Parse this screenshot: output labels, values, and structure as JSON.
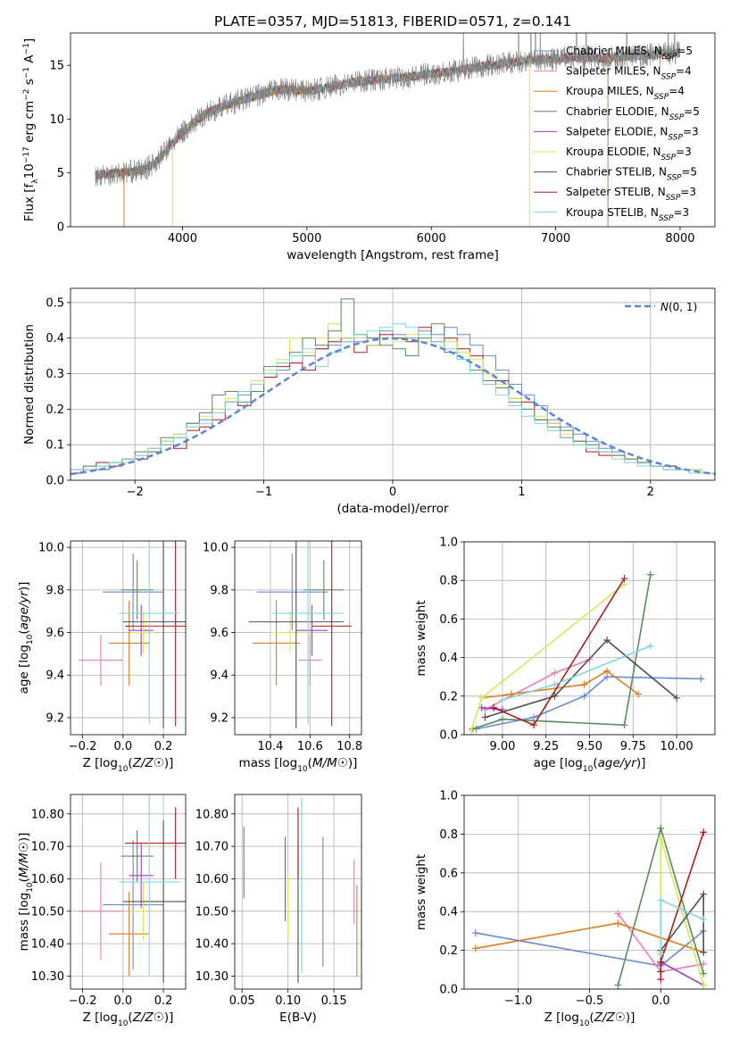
{
  "figure": {
    "title": "PLATE=0357, MJD=51813, FIBERID=0571, z=0.141"
  },
  "chart_data": [
    {
      "id": "spectrum",
      "type": "line",
      "xlabel": "wavelength [Angstrom, rest frame]",
      "ylabel": "Flux [f_λ10^-17 erg cm^-2 s^-1 A^-1]",
      "xlim": [
        3100,
        8280
      ],
      "ylim": [
        0,
        18
      ],
      "xticks": [
        4000,
        5000,
        6000,
        7000,
        8000
      ],
      "yticks": [
        0,
        5,
        10,
        15
      ],
      "grid": false,
      "legend_position": "top-right",
      "observed": {
        "color": "#808080",
        "x": [
          3300,
          3500,
          3700,
          3800,
          3900,
          4000,
          4200,
          4400,
          4600,
          4800,
          5000,
          5200,
          5400,
          5600,
          5800,
          6000,
          6200,
          6400,
          6600,
          6800,
          7000,
          7200,
          7400,
          7600,
          7800,
          8000
        ],
        "y": [
          4.8,
          5.0,
          5.3,
          6.2,
          7.5,
          8.8,
          10.6,
          11.5,
          12.2,
          12.8,
          12.6,
          13.0,
          13.5,
          13.7,
          13.9,
          14.2,
          14.5,
          14.9,
          15.2,
          15.5,
          15.6,
          15.8,
          15.6,
          15.9,
          16.0,
          16.2
        ]
      },
      "series": [
        {
          "name": "Chabrier MILES",
          "nssp": "5",
          "color": "#6a8ad6"
        },
        {
          "name": "Salpeter MILES",
          "nssp": "4",
          "color": "#e57fb4"
        },
        {
          "name": "Kroupa MILES",
          "nssp": "4",
          "color": "#e07b20"
        },
        {
          "name": "Chabrier ELODIE",
          "nssp": "5",
          "color": "#5a8a5f"
        },
        {
          "name": "Salpeter ELODIE",
          "nssp": "3",
          "color": "#a03cc8"
        },
        {
          "name": "Kroupa ELODIE",
          "nssp": "3",
          "color": "#d4e85c"
        },
        {
          "name": "Chabrier STELIB",
          "nssp": "5",
          "color": "#4f4f4f"
        },
        {
          "name": "Salpeter STELIB",
          "nssp": "3",
          "color": "#b01c1c"
        },
        {
          "name": "Kroupa STELIB",
          "nssp": "3",
          "color": "#7fd6df"
        }
      ]
    },
    {
      "id": "residual_hist",
      "type": "histogram",
      "xlabel": "(data-model)/error",
      "ylabel": "Normed distribution",
      "xlim": [
        -2.5,
        2.5
      ],
      "ylim": [
        0,
        0.54
      ],
      "xticks": [
        -2,
        -1,
        0,
        1,
        2
      ],
      "yticks": [
        0.0,
        0.1,
        0.2,
        0.3,
        0.4,
        0.5
      ],
      "grid": true,
      "legend_position": "top-right",
      "reference": {
        "label": "N(0,1)",
        "color": "#5b86d6",
        "style": "dashed"
      },
      "bin_edges_start": -2.5,
      "bin_width": 0.1,
      "series": [
        {
          "color": "#6a8ad6",
          "values": [
            0.03,
            0.04,
            0.04,
            0.05,
            0.06,
            0.07,
            0.09,
            0.11,
            0.13,
            0.16,
            0.17,
            0.2,
            0.22,
            0.24,
            0.27,
            0.29,
            0.31,
            0.33,
            0.35,
            0.37,
            0.38,
            0.39,
            0.39,
            0.4,
            0.42,
            0.41,
            0.4,
            0.42,
            0.41,
            0.43,
            0.41,
            0.38,
            0.35,
            0.31,
            0.27,
            0.24,
            0.21,
            0.17,
            0.15,
            0.13,
            0.11,
            0.09,
            0.08,
            0.06,
            0.05,
            0.04,
            0.04,
            0.03,
            0.03,
            0.02
          ]
        },
        {
          "color": "#b01c1c",
          "values": [
            0.02,
            0.03,
            0.05,
            0.04,
            0.06,
            0.06,
            0.08,
            0.1,
            0.09,
            0.14,
            0.15,
            0.17,
            0.22,
            0.21,
            0.25,
            0.29,
            0.32,
            0.33,
            0.31,
            0.37,
            0.39,
            0.4,
            0.36,
            0.38,
            0.41,
            0.4,
            0.39,
            0.43,
            0.39,
            0.4,
            0.37,
            0.35,
            0.3,
            0.28,
            0.23,
            0.22,
            0.17,
            0.16,
            0.12,
            0.11,
            0.08,
            0.07,
            0.07,
            0.06,
            0.05,
            0.04,
            0.04,
            0.03,
            0.03,
            0.02
          ]
        },
        {
          "color": "#d4e85c",
          "values": [
            0.03,
            0.04,
            0.04,
            0.05,
            0.05,
            0.07,
            0.09,
            0.11,
            0.13,
            0.15,
            0.18,
            0.2,
            0.23,
            0.25,
            0.28,
            0.31,
            0.34,
            0.4,
            0.36,
            0.4,
            0.44,
            0.4,
            0.41,
            0.38,
            0.4,
            0.39,
            0.41,
            0.39,
            0.38,
            0.39,
            0.36,
            0.34,
            0.3,
            0.27,
            0.23,
            0.2,
            0.18,
            0.16,
            0.13,
            0.11,
            0.09,
            0.08,
            0.07,
            0.06,
            0.05,
            0.04,
            0.03,
            0.03,
            0.03,
            0.02
          ]
        },
        {
          "color": "#5a8a5f",
          "values": [
            0.03,
            0.04,
            0.03,
            0.05,
            0.06,
            0.08,
            0.08,
            0.12,
            0.12,
            0.16,
            0.19,
            0.24,
            0.25,
            0.22,
            0.25,
            0.32,
            0.33,
            0.36,
            0.4,
            0.38,
            0.42,
            0.51,
            0.41,
            0.4,
            0.38,
            0.37,
            0.35,
            0.4,
            0.44,
            0.36,
            0.34,
            0.31,
            0.28,
            0.26,
            0.22,
            0.2,
            0.17,
            0.15,
            0.14,
            0.11,
            0.1,
            0.08,
            0.07,
            0.06,
            0.05,
            0.04,
            0.03,
            0.03,
            0.02,
            0.02
          ]
        },
        {
          "color": "#7fd6df",
          "values": [
            0.03,
            0.03,
            0.04,
            0.05,
            0.06,
            0.07,
            0.09,
            0.1,
            0.12,
            0.15,
            0.16,
            0.19,
            0.22,
            0.25,
            0.27,
            0.3,
            0.33,
            0.35,
            0.37,
            0.32,
            0.36,
            0.39,
            0.41,
            0.42,
            0.43,
            0.44,
            0.43,
            0.41,
            0.39,
            0.37,
            0.34,
            0.3,
            0.27,
            0.24,
            0.21,
            0.18,
            0.16,
            0.14,
            0.12,
            0.1,
            0.09,
            0.08,
            0.06,
            0.05,
            0.04,
            0.04,
            0.03,
            0.03,
            0.02,
            0.02
          ]
        }
      ]
    },
    {
      "id": "age_vs_Z",
      "type": "errorbar",
      "xlabel": "Z [log10(Z/Z☉)]",
      "ylabel": "age  [log10(age/yr)]",
      "xlim": [
        -0.26,
        0.31
      ],
      "ylim": [
        9.12,
        10.03
      ],
      "xticks": [
        -0.2,
        0.0,
        0.2
      ],
      "yticks": [
        9.2,
        9.4,
        9.6,
        9.8,
        10.0
      ],
      "grid": true,
      "points": [
        {
          "color": "#6a8ad6",
          "x": 0.05,
          "xerr": 0.15,
          "y": 9.79,
          "yerr": 0.18
        },
        {
          "color": "#e57fb4",
          "x": -0.11,
          "xerr": 0.11,
          "y": 9.47,
          "yerr": 0.12
        },
        {
          "color": "#e07b20",
          "x": 0.03,
          "xerr": 0.1,
          "y": 9.55,
          "yerr": 0.2
        },
        {
          "color": "#5a8a5f",
          "x": 0.07,
          "xerr": 0.08,
          "y": 9.8,
          "yerr": 0.14
        },
        {
          "color": "#a03cc8",
          "x": 0.09,
          "xerr": 0.06,
          "y": 9.61,
          "yerr": 0.12
        },
        {
          "color": "#d4e85c",
          "x": 0.1,
          "xerr": 0.06,
          "y": 9.6,
          "yerr": 0.1
        },
        {
          "color": "#4f4f4f",
          "x": 0.2,
          "xerr": 0.2,
          "y": 9.65,
          "yerr": 0.5
        },
        {
          "color": "#b01c1c",
          "x": 0.26,
          "xerr": 0.25,
          "y": 9.63,
          "yerr": 0.47
        },
        {
          "color": "#7fd6df",
          "x": 0.13,
          "xerr": 0.15,
          "y": 9.69,
          "yerr": 0.52
        }
      ]
    },
    {
      "id": "age_vs_mass",
      "type": "errorbar",
      "xlabel": "mass [log10(M/M☉)]",
      "ylabel": "",
      "xlim": [
        10.22,
        10.86
      ],
      "ylim": [
        9.12,
        10.03
      ],
      "xticks": [
        10.4,
        10.6,
        10.8
      ],
      "yticks": [
        9.2,
        9.4,
        9.6,
        9.8,
        10.0
      ],
      "grid": true,
      "points": [
        {
          "color": "#6a8ad6",
          "x": 10.51,
          "xerr": 0.18,
          "y": 9.79,
          "yerr": 0.18
        },
        {
          "color": "#e57fb4",
          "x": 10.6,
          "xerr": 0.06,
          "y": 9.47,
          "yerr": 0.12
        },
        {
          "color": "#e07b20",
          "x": 10.43,
          "xerr": 0.12,
          "y": 9.55,
          "yerr": 0.2
        },
        {
          "color": "#5a8a5f",
          "x": 10.67,
          "xerr": 0.1,
          "y": 9.8,
          "yerr": 0.14
        },
        {
          "color": "#a03cc8",
          "x": 10.61,
          "xerr": 0.08,
          "y": 9.61,
          "yerr": 0.12
        },
        {
          "color": "#d4e85c",
          "x": 10.5,
          "xerr": 0.1,
          "y": 9.6,
          "yerr": 0.1
        },
        {
          "color": "#4f4f4f",
          "x": 10.53,
          "xerr": 0.24,
          "y": 9.65,
          "yerr": 0.5
        },
        {
          "color": "#b01c1c",
          "x": 10.71,
          "xerr": 0.1,
          "y": 9.63,
          "yerr": 0.47
        },
        {
          "color": "#7fd6df",
          "x": 10.59,
          "xerr": 0.18,
          "y": 9.69,
          "yerr": 0.52
        }
      ]
    },
    {
      "id": "massweight_vs_age",
      "type": "line",
      "xlabel": "age  [log10(age/yr)]",
      "ylabel": "mass weight",
      "xlim": [
        8.78,
        10.22
      ],
      "ylim": [
        0,
        1
      ],
      "xticks": [
        9.0,
        9.25,
        9.5,
        9.75,
        10.0
      ],
      "yticks": [
        0.0,
        0.2,
        0.4,
        0.6,
        0.8,
        1.0
      ],
      "grid": true,
      "series": [
        {
          "color": "#6a8ad6",
          "x": [
            8.85,
            9.18,
            9.47,
            9.6,
            10.14
          ],
          "y": [
            0.03,
            0.09,
            0.2,
            0.3,
            0.29
          ]
        },
        {
          "color": "#e57fb4",
          "x": [
            8.9,
            9.3,
            9.5
          ],
          "y": [
            0.13,
            0.32,
            0.39
          ]
        },
        {
          "color": "#e07b20",
          "x": [
            8.88,
            9.05,
            9.47,
            9.6,
            9.78
          ],
          "y": [
            0.19,
            0.21,
            0.26,
            0.33,
            0.21
          ]
        },
        {
          "color": "#5a8a5f",
          "x": [
            8.83,
            9.0,
            9.7,
            9.85
          ],
          "y": [
            0.03,
            0.08,
            0.05,
            0.83
          ]
        },
        {
          "color": "#a03cc8",
          "x": [
            8.88,
            9.0
          ],
          "y": [
            0.14,
            0.13
          ]
        },
        {
          "color": "#d4e85c",
          "x": [
            8.82,
            8.88,
            9.7
          ],
          "y": [
            0.02,
            0.19,
            0.78
          ]
        },
        {
          "color": "#4f4f4f",
          "x": [
            8.9,
            9.3,
            9.6,
            10.0
          ],
          "y": [
            0.09,
            0.2,
            0.49,
            0.19
          ]
        },
        {
          "color": "#b01c1c",
          "x": [
            8.95,
            9.18,
            9.7
          ],
          "y": [
            0.14,
            0.05,
            0.81
          ]
        },
        {
          "color": "#7fd6df",
          "x": [
            9.0,
            9.3,
            9.85
          ],
          "y": [
            0.18,
            0.26,
            0.46
          ]
        }
      ]
    },
    {
      "id": "mass_vs_Z",
      "type": "errorbar",
      "xlabel": "Z [log10(Z/Z☉)]",
      "ylabel": "mass [log10(M/M☉)]",
      "xlim": [
        -0.26,
        0.31
      ],
      "ylim": [
        10.26,
        10.86
      ],
      "xticks": [
        -0.2,
        0.0,
        0.2
      ],
      "yticks": [
        10.3,
        10.4,
        10.5,
        10.6,
        10.7,
        10.8
      ],
      "grid": true,
      "points": [
        {
          "color": "#6a8ad6",
          "x": 0.05,
          "xerr": 0.15,
          "y": 10.52,
          "yerr": 0.2
        },
        {
          "color": "#e57fb4",
          "x": -0.11,
          "xerr": 0.11,
          "y": 10.5,
          "yerr": 0.15
        },
        {
          "color": "#e07b20",
          "x": 0.03,
          "xerr": 0.1,
          "y": 10.43,
          "yerr": 0.13
        },
        {
          "color": "#5a8a5f",
          "x": 0.07,
          "xerr": 0.08,
          "y": 10.67,
          "yerr": 0.08
        },
        {
          "color": "#a03cc8",
          "x": 0.09,
          "xerr": 0.06,
          "y": 10.61,
          "yerr": 0.1
        },
        {
          "color": "#d4e85c",
          "x": 0.1,
          "xerr": 0.06,
          "y": 10.5,
          "yerr": 0.09
        },
        {
          "color": "#4f4f4f",
          "x": 0.2,
          "xerr": 0.2,
          "y": 10.53,
          "yerr": 0.25
        },
        {
          "color": "#b01c1c",
          "x": 0.26,
          "xerr": 0.25,
          "y": 10.71,
          "yerr": 0.11
        },
        {
          "color": "#7fd6df",
          "x": 0.13,
          "xerr": 0.15,
          "y": 10.59,
          "yerr": 0.29
        }
      ]
    },
    {
      "id": "mass_vs_EBV",
      "type": "errorbar",
      "xlabel": "E(B-V)",
      "ylabel": "",
      "xlim": [
        0.042,
        0.18
      ],
      "ylim": [
        10.26,
        10.86
      ],
      "xticks": [
        0.05,
        0.1,
        0.15
      ],
      "yticks": [
        10.3,
        10.4,
        10.5,
        10.6,
        10.7,
        10.8
      ],
      "grid": true,
      "points": [
        {
          "color": "#6a8ad6",
          "x": 0.138,
          "y": 10.53,
          "yerr": 0.2
        },
        {
          "color": "#e57fb4",
          "x": 0.172,
          "y": 10.56,
          "yerr": 0.1
        },
        {
          "color": "#e07b20",
          "x": 0.175,
          "y": 10.44,
          "yerr": 0.14
        },
        {
          "color": "#5a8a5f",
          "x": 0.052,
          "y": 10.65,
          "yerr": 0.11
        },
        {
          "color": "#a03cc8",
          "x": 0.097,
          "y": 10.6,
          "yerr": 0.13
        },
        {
          "color": "#d4e85c",
          "x": 0.1,
          "y": 10.51,
          "yerr": 0.1
        },
        {
          "color": "#4f4f4f",
          "x": 0.111,
          "y": 10.5,
          "yerr": 0.22
        },
        {
          "color": "#b01c1c",
          "x": 0.111,
          "y": 10.71,
          "yerr": 0.11
        },
        {
          "color": "#7fd6df",
          "x": 0.115,
          "y": 10.58,
          "yerr": 0.27
        }
      ]
    },
    {
      "id": "massweight_vs_Z",
      "type": "line",
      "xlabel": "Z [log10(Z/Z☉)]",
      "ylabel": "mass weight",
      "xlim": [
        -1.38,
        0.38
      ],
      "ylim": [
        0,
        1
      ],
      "xticks": [
        -1.0,
        -0.5,
        0.0
      ],
      "yticks": [
        0.0,
        0.2,
        0.4,
        0.6,
        0.8,
        1.0
      ],
      "grid": true,
      "series": [
        {
          "color": "#6a8ad6",
          "x": [
            -1.3,
            0.0,
            0.3
          ],
          "y": [
            0.29,
            0.12,
            0.3
          ]
        },
        {
          "color": "#e57fb4",
          "x": [
            -0.3,
            0.0,
            0.3
          ],
          "y": [
            0.39,
            0.09,
            0.13
          ]
        },
        {
          "color": "#e07b20",
          "x": [
            -1.3,
            -0.3,
            0.3
          ],
          "y": [
            0.21,
            0.34,
            0.19
          ]
        },
        {
          "color": "#5a8a5f",
          "x": [
            -0.3,
            0.0,
            0.3
          ],
          "y": [
            0.02,
            0.83,
            0.08
          ]
        },
        {
          "color": "#a03cc8",
          "x": [
            0.0,
            0.0,
            0.3
          ],
          "y": [
            0.13,
            0.14,
            0.02
          ]
        },
        {
          "color": "#d4e85c",
          "x": [
            0.0,
            0.0,
            0.3
          ],
          "y": [
            0.19,
            0.78,
            0.02
          ]
        },
        {
          "color": "#4f4f4f",
          "x": [
            0.0,
            0.0,
            0.3,
            0.3
          ],
          "y": [
            0.09,
            0.2,
            0.49,
            0.19
          ]
        },
        {
          "color": "#b01c1c",
          "x": [
            0.0,
            0.0,
            0.3
          ],
          "y": [
            0.05,
            0.14,
            0.81
          ]
        },
        {
          "color": "#7fd6df",
          "x": [
            0.0,
            0.0,
            0.3
          ],
          "y": [
            0.18,
            0.46,
            0.36
          ]
        }
      ]
    }
  ]
}
